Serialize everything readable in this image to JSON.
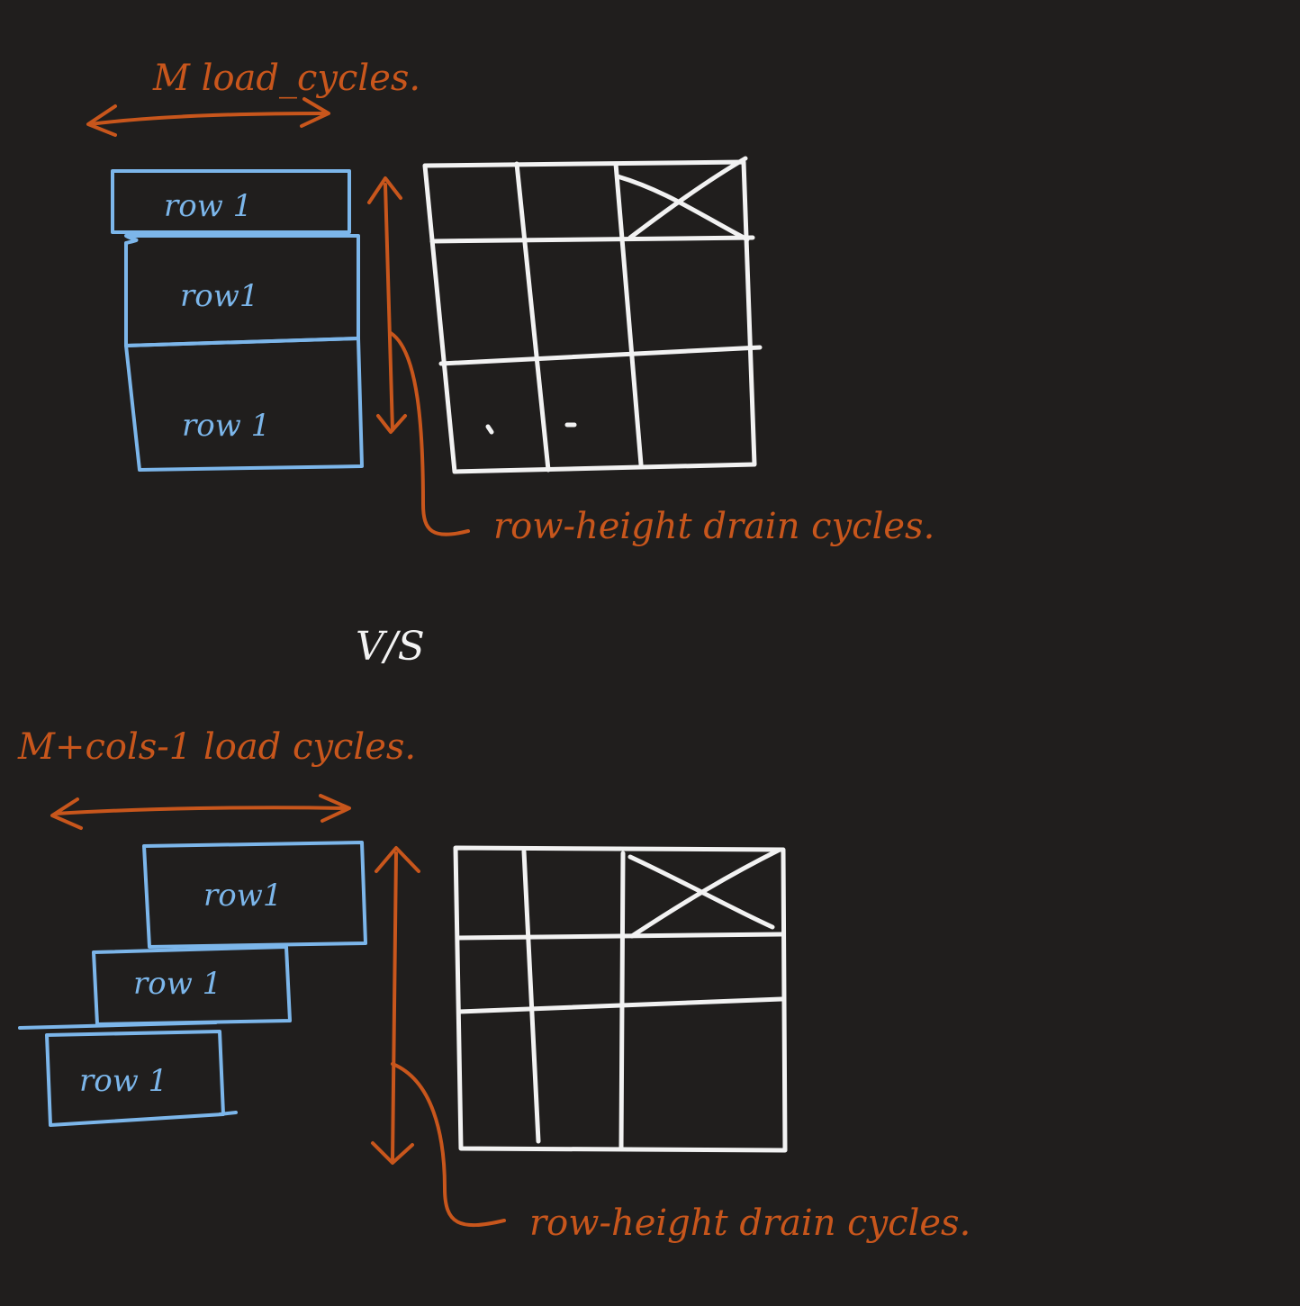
{
  "colors": {
    "background": "#201e1d",
    "row_blocks": "#7cb6ea",
    "grid": "#f2f2f2",
    "annotation": "#c8561c"
  },
  "top": {
    "load_label": "M load_cycles.",
    "row_labels": [
      "row 1",
      "row1",
      "row 1"
    ],
    "drain_label": "row-height drain cycles."
  },
  "separator": "V/S",
  "bottom": {
    "load_label": "M+cols-1 load cycles.",
    "row_labels": [
      "row1",
      "row 1",
      "row 1"
    ],
    "drain_label": "row-height drain cycles."
  }
}
